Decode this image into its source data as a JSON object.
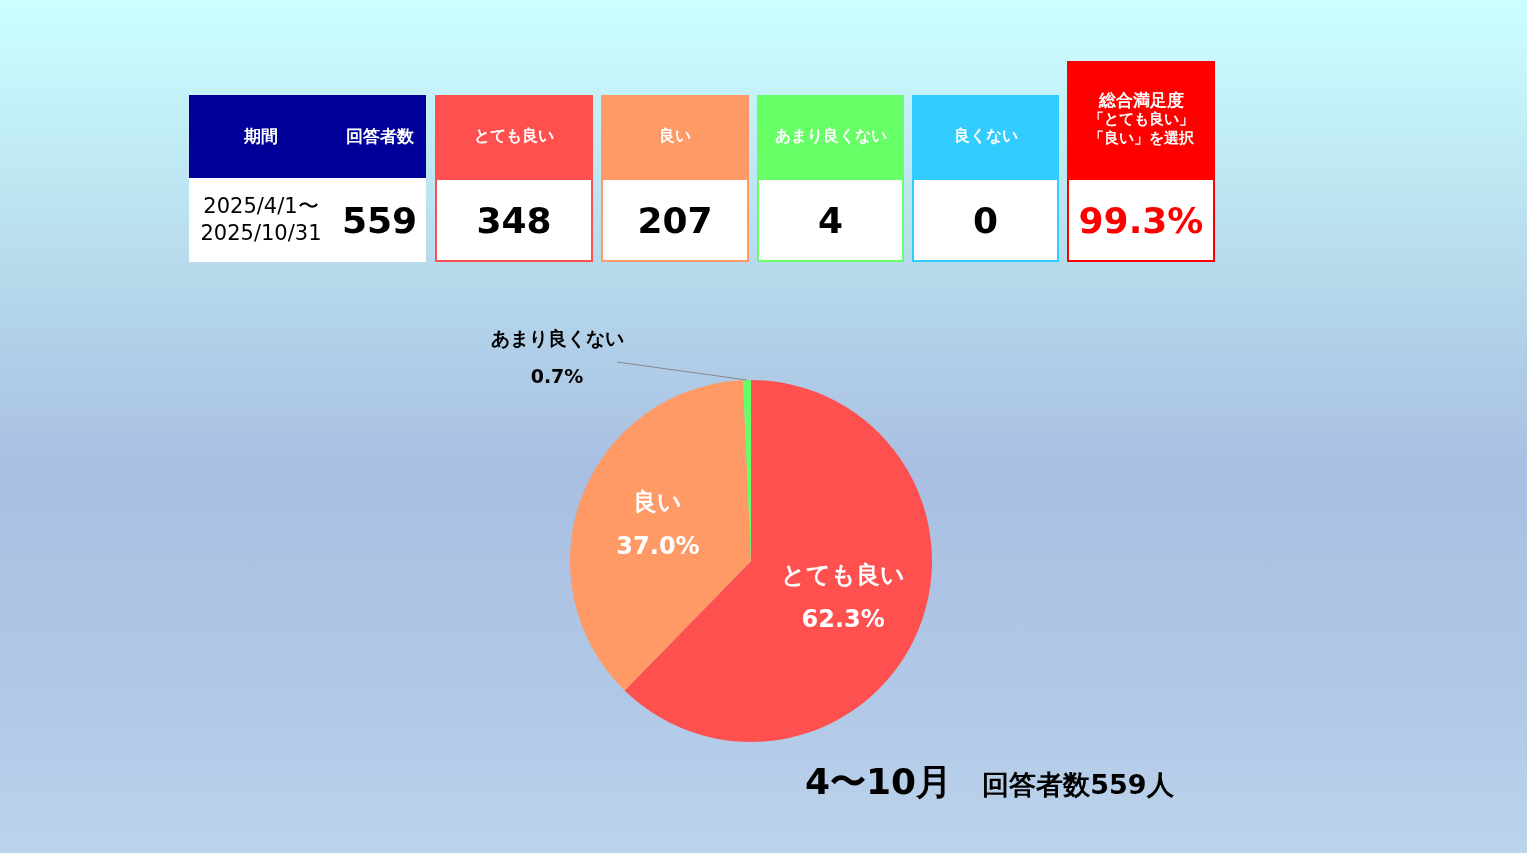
{
  "chart_data": {
    "type": "pie",
    "title": "4〜10月",
    "subtitle": "回答者数559人",
    "categories": [
      "とても良い",
      "良い",
      "あまり良くない",
      "良くない"
    ],
    "values": [
      62.3,
      37.0,
      0.7,
      0
    ],
    "colors": [
      "#ff5050",
      "#ff9966",
      "#66ff66",
      "#33ccff"
    ],
    "value_labels": [
      "62.3%",
      "37.0%",
      "0.7%",
      null
    ],
    "annotations": [
      "期間",
      "2025/4/1〜\n2025/10/31",
      "回答者数",
      "559",
      "348",
      "207",
      "4",
      "0",
      "総合満足度",
      "「とても良い」",
      "「良い」を選択",
      "99.3%"
    ],
    "legend": false
  }
}
